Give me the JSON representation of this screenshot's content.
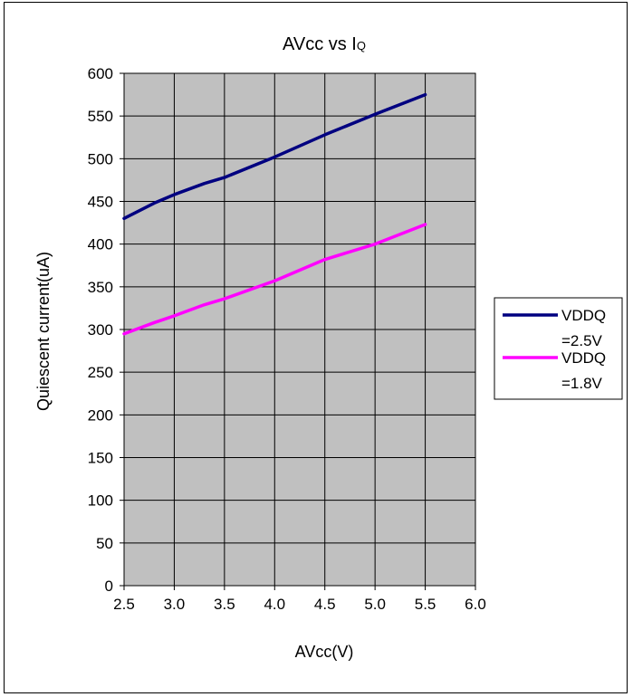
{
  "chart_data": {
    "type": "line",
    "title": "AVcc vs I",
    "title_subscript": "Q",
    "xlabel": "AVcc(V)",
    "ylabel": "Quiescent current(uA)",
    "xlim": [
      2.5,
      6.0
    ],
    "ylim": [
      0,
      600
    ],
    "xticks": [
      "2.5",
      "3.0",
      "3.5",
      "4.0",
      "4.5",
      "5.0",
      "5.5",
      "6.0"
    ],
    "yticks": [
      "0",
      "50",
      "100",
      "150",
      "200",
      "250",
      "300",
      "350",
      "400",
      "450",
      "500",
      "550",
      "600"
    ],
    "grid": true,
    "plot_background": "#c0c0c0",
    "legend_position": "right",
    "series": [
      {
        "name": "VDDQ =2.5V",
        "legend_lines": [
          "VDDQ",
          "=2.5V"
        ],
        "color": "#000080",
        "x": [
          2.5,
          2.8,
          3.0,
          3.3,
          3.5,
          4.0,
          4.5,
          5.0,
          5.5
        ],
        "y": [
          430,
          448,
          458,
          471,
          478,
          502,
          528,
          552,
          575
        ]
      },
      {
        "name": "VDDQ =1.8V",
        "legend_lines": [
          "VDDQ",
          "=1.8V"
        ],
        "color": "#ff00ff",
        "x": [
          2.5,
          2.8,
          3.0,
          3.3,
          3.5,
          4.0,
          4.5,
          5.0,
          5.5
        ],
        "y": [
          295,
          308,
          316,
          329,
          336,
          357,
          382,
          400,
          423
        ]
      }
    ]
  }
}
